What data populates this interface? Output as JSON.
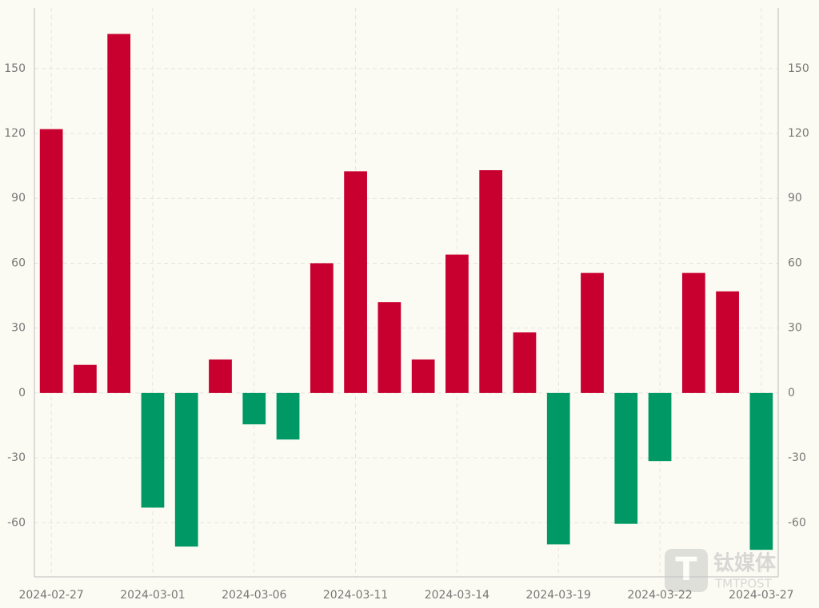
{
  "chart_data": {
    "type": "bar",
    "categories": [
      "2024-02-27",
      null,
      null,
      "2024-03-01",
      null,
      null,
      "2024-03-06",
      null,
      null,
      "2024-03-11",
      null,
      null,
      "2024-03-14",
      null,
      null,
      "2024-03-19",
      null,
      null,
      "2024-03-22",
      null,
      null,
      "2024-03-27"
    ],
    "values": [
      122,
      13,
      166,
      -53,
      -71,
      15.5,
      -14.5,
      -21.5,
      60,
      102.5,
      42,
      15.5,
      64,
      103,
      28,
      -70,
      55.5,
      -60.5,
      -31.5,
      55.5,
      47,
      -72.5
    ],
    "positive_color": "#c8002f",
    "negative_color": "#009966",
    "ylim": [
      -85,
      178
    ],
    "yticks": [
      -60,
      -30,
      0,
      30,
      60,
      90,
      120,
      150
    ],
    "y2lim": [
      -85,
      178
    ],
    "y2ticks": [
      -60,
      -30,
      0,
      30,
      60,
      90,
      120,
      150
    ],
    "grid": true,
    "watermark": [
      "钛媒体",
      "TMTPOST"
    ]
  }
}
